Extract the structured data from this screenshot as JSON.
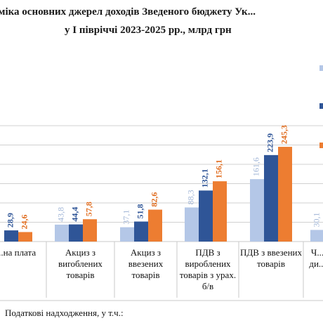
{
  "chart_data": {
    "type": "bar",
    "title_lines": [
      "...міка основних джерел доходів Зведеного бюджету Ук...",
      "у І півріччі 2023-2025 рр., млрд грн"
    ],
    "categories": [
      "...на плата",
      "Акциз з виroблених товарів",
      "Акциз з ввезених товарів",
      "ПДВ з вироблених товарів з урах. б/в",
      "ПДВ з ввезених товарів",
      "Ч... ди..."
    ],
    "series": [
      {
        "color": "#b4c7e7",
        "values": [
          null,
          43.8,
          37.1,
          88.3,
          161.6,
          30.1
        ]
      },
      {
        "color": "#2f5597",
        "values": [
          28.9,
          44.4,
          51.8,
          132.1,
          223.9,
          null
        ]
      },
      {
        "color": "#ed7d31",
        "values": [
          24.6,
          57.8,
          82.6,
          156.1,
          245.3,
          null
        ]
      }
    ],
    "value_labels": [
      [
        null,
        "43,8",
        "37,1",
        "88,3",
        "161,6",
        "30,1"
      ],
      [
        "28,9",
        "44,4",
        "51,8",
        "132,1",
        "223,9",
        null
      ],
      [
        "24,6",
        "57,8",
        "82,6",
        "156,1",
        "245,3",
        null
      ]
    ],
    "group_label": "Податкові надходження, у т.ч.:",
    "legend_position": "right",
    "grid": true
  }
}
